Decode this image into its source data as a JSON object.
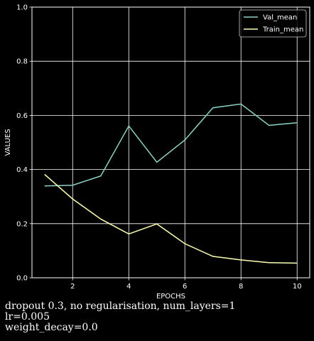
{
  "chart_data": {
    "type": "line",
    "xlabel": "EPOCHS",
    "ylabel": "VALUES",
    "xlim": [
      0.55,
      10.45
    ],
    "ylim": [
      0,
      1
    ],
    "xticks": [
      2,
      4,
      6,
      8,
      10
    ],
    "yticks": [
      0.0,
      0.2,
      0.4,
      0.6,
      0.8,
      1.0
    ],
    "ytick_labels": [
      "0.0",
      "0.2",
      "0.4",
      "0.6",
      "0.8",
      "1.0"
    ],
    "grid": true,
    "legend_position": "top-right",
    "x": [
      1,
      2,
      3,
      4,
      5,
      6,
      7,
      8,
      9,
      10
    ],
    "series": [
      {
        "name": "Val_mean",
        "color": "#8dd3c7",
        "values": [
          0.339,
          0.342,
          0.376,
          0.561,
          0.427,
          0.509,
          0.628,
          0.642,
          0.563,
          0.573
        ]
      },
      {
        "name": "Train_mean",
        "color": "#feffb3",
        "values": [
          0.382,
          0.291,
          0.217,
          0.162,
          0.199,
          0.126,
          0.079,
          0.066,
          0.056,
          0.054
        ]
      }
    ]
  },
  "caption": {
    "line1": "dropout 0.3, no regularisation, num_layers=1",
    "line2": "lr=0.005",
    "line3": "weight_decay=0.0"
  },
  "colors": {
    "background": "#000000",
    "axes": "#ffffff",
    "grid": "#ffffff"
  }
}
